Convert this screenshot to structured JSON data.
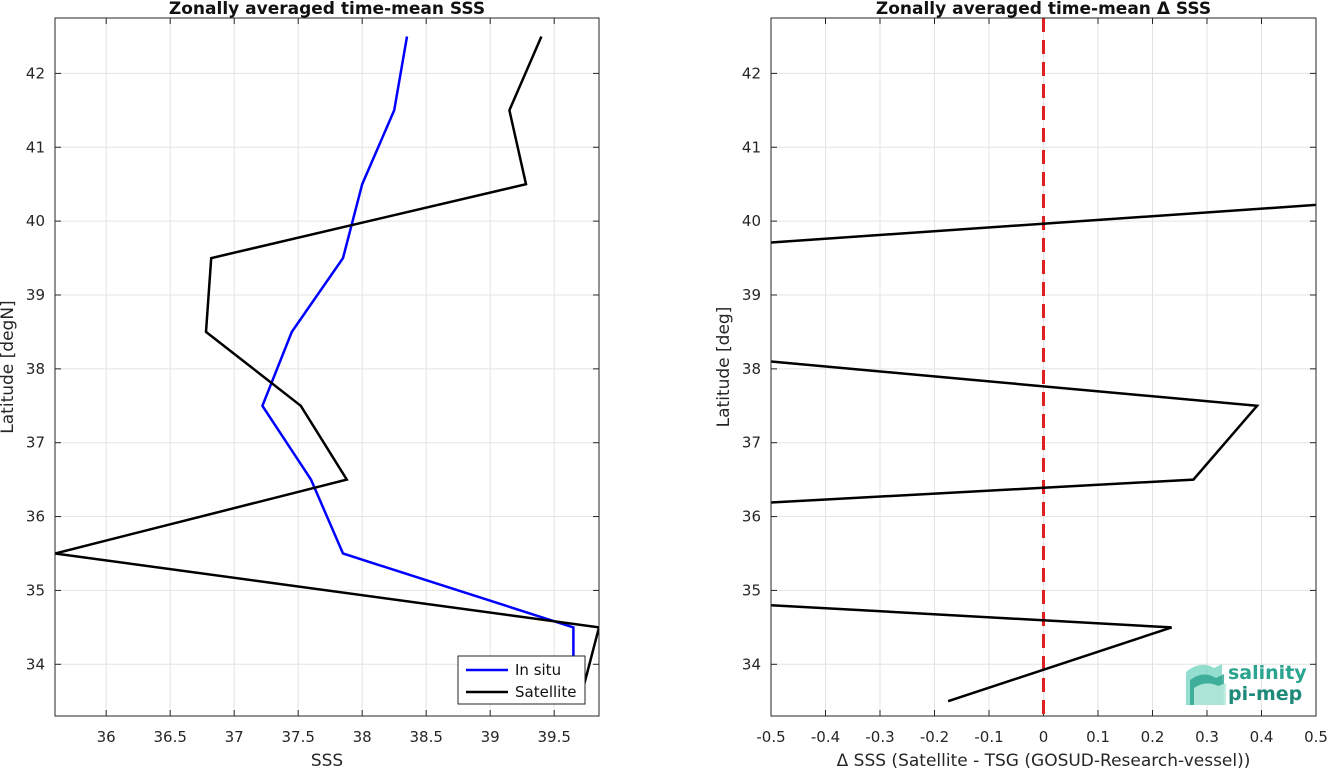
{
  "chart_data": [
    {
      "type": "line",
      "title": "Zonally averaged time-mean SSS",
      "xlabel": "SSS",
      "ylabel": "Latitude [degN]",
      "xlim": [
        35.6,
        39.85
      ],
      "ylim": [
        33.3,
        42.75
      ],
      "xticks": [
        36,
        36.5,
        37,
        37.5,
        38,
        38.5,
        39,
        39.5
      ],
      "xtick_labels": [
        "36",
        "36.5",
        "37",
        "37.5",
        "38",
        "38.5",
        "39",
        "39.5"
      ],
      "yticks": [
        34,
        35,
        36,
        37,
        38,
        39,
        40,
        41,
        42
      ],
      "ytick_labels": [
        "34",
        "35",
        "36",
        "37",
        "38",
        "39",
        "40",
        "41",
        "42"
      ],
      "grid": true,
      "legend": "bottom-right",
      "series": [
        {
          "name": "In situ",
          "color": "#0000ff",
          "points": [
            [
              39.65,
              33.5
            ],
            [
              39.65,
              34.5
            ],
            [
              37.85,
              35.5
            ],
            [
              37.6,
              36.5
            ],
            [
              37.22,
              37.5
            ],
            [
              37.45,
              38.5
            ],
            [
              37.85,
              39.5
            ],
            [
              38.0,
              40.5
            ],
            [
              38.25,
              41.5
            ],
            [
              38.35,
              42.5
            ]
          ]
        },
        {
          "name": "Satellite",
          "color": "#000000",
          "points": [
            [
              39.7,
              33.5
            ],
            [
              39.85,
              34.5
            ],
            [
              35.6,
              35.5
            ],
            [
              37.88,
              36.5
            ],
            [
              37.52,
              37.5
            ],
            [
              36.78,
              38.5
            ],
            [
              36.82,
              39.5
            ],
            [
              39.28,
              40.5
            ],
            [
              39.15,
              41.5
            ],
            [
              39.4,
              42.5
            ]
          ]
        }
      ]
    },
    {
      "type": "line",
      "title": "Zonally averaged time-mean Δ SSS",
      "xlabel": "Δ SSS (Satellite - TSG (GOSUD-Research-vessel))",
      "ylabel": "Latitude [deg]",
      "xlim": [
        -0.5,
        0.5
      ],
      "ylim": [
        33.3,
        42.75
      ],
      "xticks": [
        -0.5,
        -0.4,
        -0.3,
        -0.2,
        -0.1,
        0,
        0.1,
        0.2,
        0.3,
        0.4,
        0.5
      ],
      "xtick_labels": [
        "-0.5",
        "-0.4",
        "-0.3",
        "-0.2",
        "-0.1",
        "0",
        "0.1",
        "0.2",
        "0.3",
        "0.4",
        "0.5"
      ],
      "yticks": [
        34,
        35,
        36,
        37,
        38,
        39,
        40,
        41,
        42
      ],
      "ytick_labels": [
        "34",
        "35",
        "36",
        "37",
        "38",
        "39",
        "40",
        "41",
        "42"
      ],
      "grid": true,
      "reference_line": {
        "x": 0,
        "color": "#e02020",
        "style": "dashed"
      },
      "series": [
        {
          "name": "",
          "color": "#000000",
          "points": [
            [
              -0.175,
              33.5
            ],
            [
              0.235,
              34.5
            ],
            [
              -0.5,
              34.8
            ]
          ]
        },
        {
          "name": "",
          "color": "#000000",
          "points": [
            [
              -0.5,
              36.19
            ],
            [
              0.275,
              36.5
            ],
            [
              0.392,
              37.5
            ],
            [
              -0.5,
              38.1
            ]
          ]
        },
        {
          "name": "",
          "color": "#000000",
          "points": [
            [
              -0.5,
              39.71
            ],
            [
              0.5,
              40.22
            ]
          ]
        }
      ]
    }
  ],
  "logo": {
    "line1": "salinity",
    "line2": "pi-mep",
    "color": "#2aa38f"
  }
}
